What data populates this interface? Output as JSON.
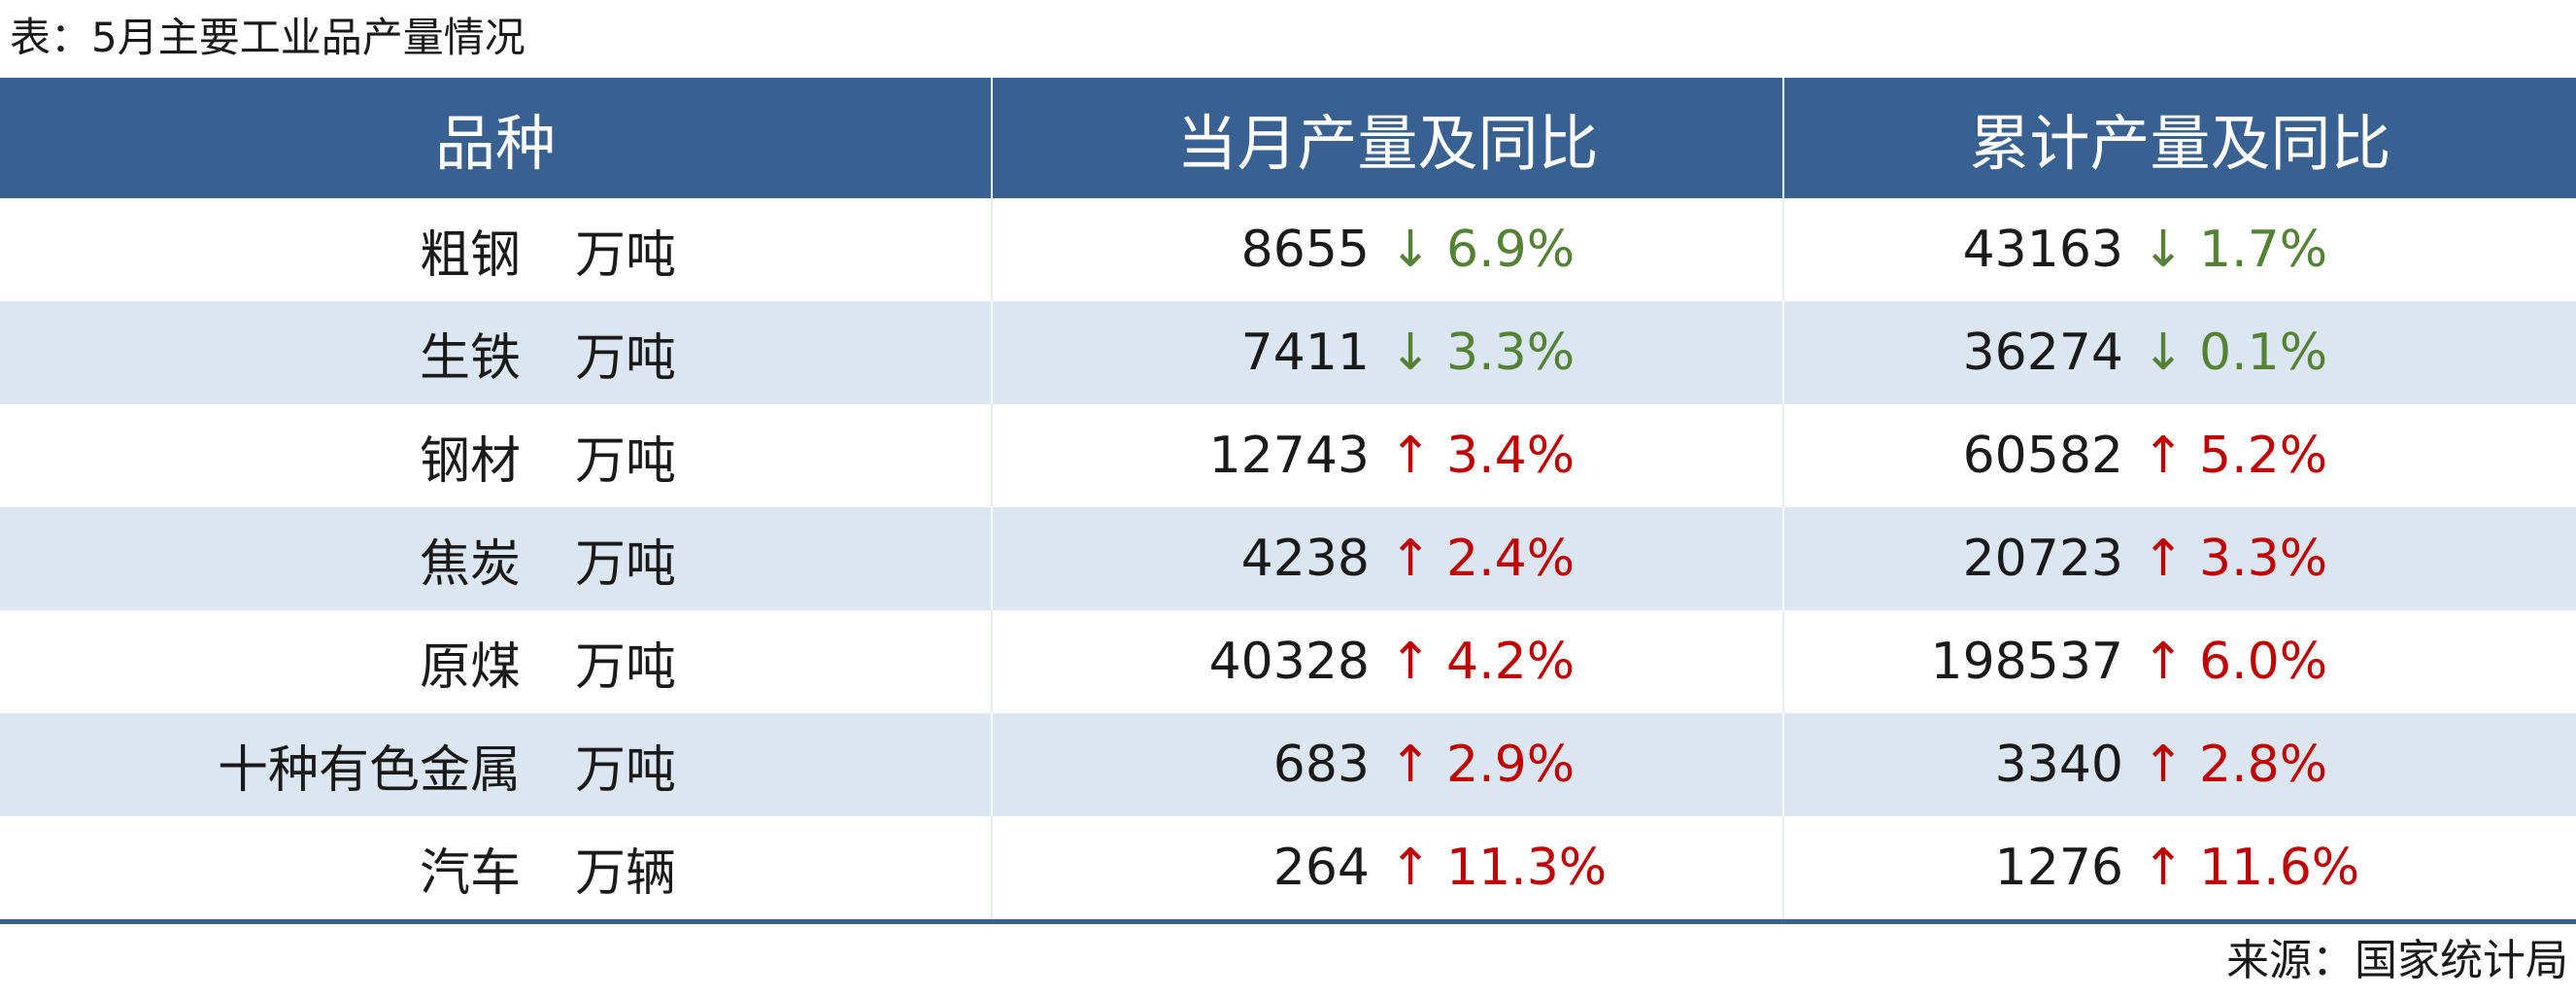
{
  "caption": "表：5月主要工业品产量情况",
  "headers": [
    "品种",
    "当月产量及同比",
    "累计产量及同比"
  ],
  "rows": [
    {
      "item": "粗钢",
      "unit": "万吨",
      "month_value": "8655",
      "month_dir": "↓",
      "month_change": "6.9%",
      "cum_value": "43163",
      "cum_dir": "↓",
      "cum_change": "1.7%"
    },
    {
      "item": "生铁",
      "unit": "万吨",
      "month_value": "7411",
      "month_dir": "↓",
      "month_change": "3.3%",
      "cum_value": "36274",
      "cum_dir": "↓",
      "cum_change": "0.1%"
    },
    {
      "item": "钢材",
      "unit": "万吨",
      "month_value": "12743",
      "month_dir": "↑",
      "month_change": "3.4%",
      "cum_value": "60582",
      "cum_dir": "↑",
      "cum_change": "5.2%"
    },
    {
      "item": "焦炭",
      "unit": "万吨",
      "month_value": "4238",
      "month_dir": "↑",
      "month_change": "2.4%",
      "cum_value": "20723",
      "cum_dir": "↑",
      "cum_change": "3.3%"
    },
    {
      "item": "原煤",
      "unit": "万吨",
      "month_value": "40328",
      "month_dir": "↑",
      "month_change": "4.2%",
      "cum_value": "198537",
      "cum_dir": "↑",
      "cum_change": "6.0%"
    },
    {
      "item": "十种有色金属",
      "unit": "万吨",
      "month_value": "683",
      "month_dir": "↑",
      "month_change": "2.9%",
      "cum_value": "3340",
      "cum_dir": "↑",
      "cum_change": "2.8%"
    },
    {
      "item": "汽车",
      "unit": "万辆",
      "month_value": "264",
      "month_dir": "↑",
      "month_change": "11.3%",
      "cum_value": "1276",
      "cum_dir": "↑",
      "cum_change": "11.6%"
    }
  ],
  "source": "来源：国家统计局",
  "colors": {
    "header_bg": "#386192",
    "band": "#dce6f1",
    "down": "#548235",
    "up": "#c00000"
  }
}
